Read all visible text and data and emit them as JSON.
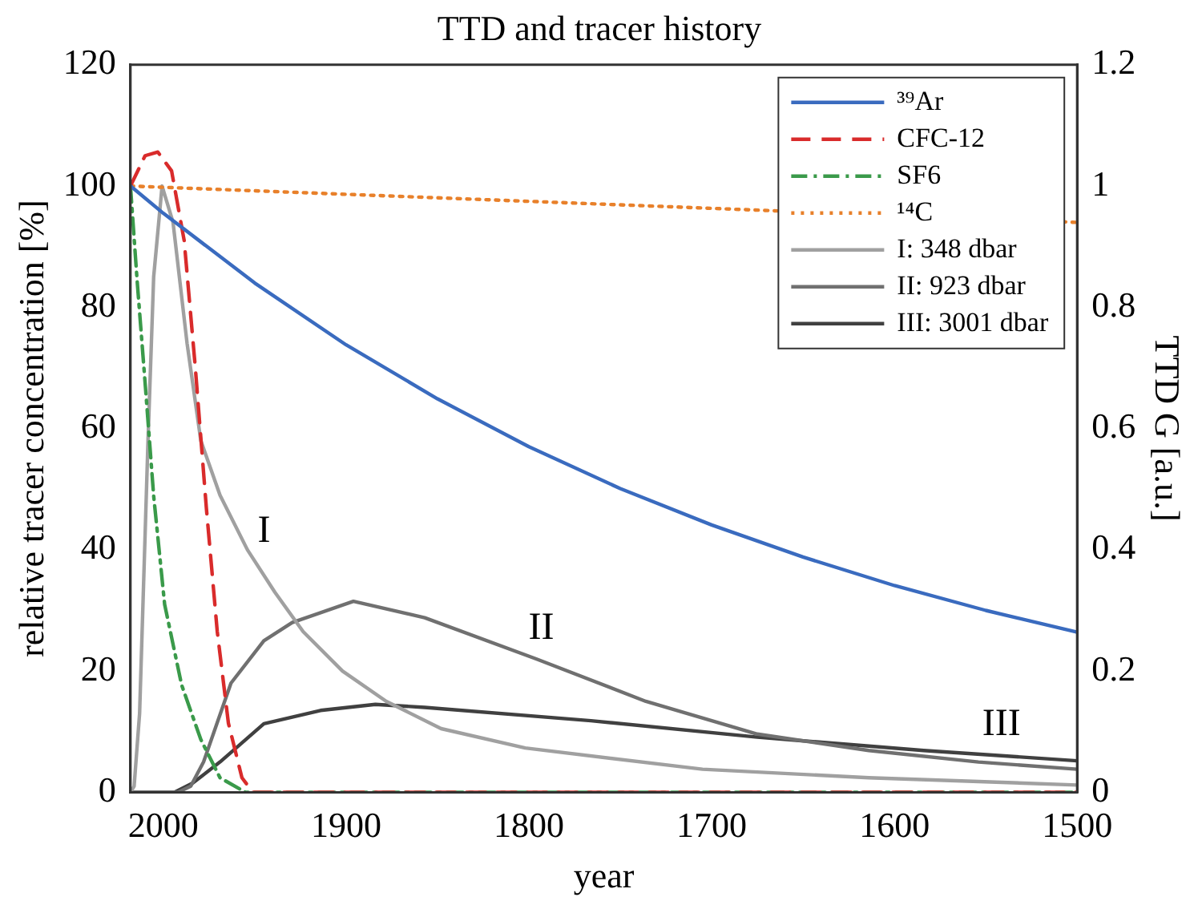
{
  "chart_data": {
    "type": "line",
    "title": "TTD and tracer history",
    "xlabel": "year",
    "ylabel": "relative tracer concentration [%]",
    "y2label": "TTD G [a.u.]",
    "xlim": [
      2018,
      1500
    ],
    "xticks": [
      2000,
      1900,
      1800,
      1700,
      1600,
      1500
    ],
    "ylim": [
      0,
      120
    ],
    "yticks": [
      0,
      20,
      40,
      60,
      80,
      100,
      120
    ],
    "y2lim": [
      0,
      1.2
    ],
    "y2ticks": [
      0,
      0.2,
      0.4,
      0.6,
      0.8,
      1,
      1.2
    ],
    "grid": false,
    "legend": "top right",
    "marker": "none",
    "annotations": [
      "I",
      "II",
      "III"
    ],
    "series": [
      {
        "name": "³⁹Ar",
        "color": "#3a6bbf",
        "line_style": "solid",
        "x": [
          2018,
          2000,
          1950,
          1900,
          1850,
          1800,
          1750,
          1700,
          1650,
          1600,
          1550,
          1500
        ],
        "values": [
          100,
          95.5,
          84,
          73.8,
          64.9,
          57,
          50.1,
          44.1,
          38.8,
          34.1,
          30,
          26.4
        ]
      },
      {
        "name": "CFC-12",
        "color": "#d92b2b",
        "line_style": "dashed",
        "x": [
          2018,
          2010,
          2003,
          1995.5,
          1988.6,
          1982.5,
          1976.5,
          1970.5,
          1964.4,
          1957,
          1951,
          1500
        ],
        "values": [
          100,
          105,
          105.6,
          102.5,
          91,
          70,
          47,
          26.5,
          11.4,
          2.4,
          0,
          0
        ]
      },
      {
        "name": "SF6",
        "color": "#3a9a4a",
        "line_style": "dashdot",
        "x": [
          2018,
          2014.4,
          2009.8,
          2005.3,
          1999.3,
          1990,
          1979.5,
          1969,
          1955,
          1500
        ],
        "values": [
          100,
          84.6,
          66.8,
          48.9,
          31,
          17.7,
          8.7,
          2.4,
          0,
          0
        ]
      },
      {
        "name": "¹⁴C",
        "color": "#e8802a",
        "line_style": "dotted",
        "x": [
          2018,
          1500
        ],
        "values": [
          100,
          94
        ]
      },
      {
        "name": "I: 348 dbar",
        "color": "#a0a0a0",
        "line_style": "solid",
        "axis": "y2",
        "x": [
          2018,
          2016,
          2013,
          2008.4,
          2005.3,
          2000.7,
          1994.7,
          1987,
          1979.5,
          1969,
          1954,
          1939,
          1923.5,
          1902,
          1878,
          1848,
          1802,
          1705,
          1614,
          1500
        ],
        "values": [
          0,
          0.01,
          0.13,
          0.58,
          0.85,
          1,
          0.94,
          0.74,
          0.58,
          0.49,
          0.4,
          0.33,
          0.265,
          0.2,
          0.15,
          0.105,
          0.073,
          0.038,
          0.024,
          0.012
        ]
      },
      {
        "name": "II: 923 dbar",
        "color": "#707070",
        "line_style": "solid",
        "axis": "y2",
        "x": [
          2018,
          1992,
          1985,
          1978,
          1963,
          1945,
          1929.5,
          1896,
          1857,
          1796,
          1736,
          1675,
          1614,
          1554,
          1500
        ],
        "values": [
          0,
          0,
          0.01,
          0.05,
          0.18,
          0.25,
          0.28,
          0.315,
          0.288,
          0.22,
          0.15,
          0.096,
          0.069,
          0.05,
          0.038
        ]
      },
      {
        "name": "III: 3001 dbar",
        "color": "#404040",
        "line_style": "solid",
        "axis": "y2",
        "x": [
          2018,
          1994,
          1984,
          1969,
          1945,
          1914,
          1884,
          1857,
          1766,
          1675,
          1584,
          1500
        ],
        "values": [
          0,
          0,
          0.015,
          0.05,
          0.113,
          0.135,
          0.145,
          0.14,
          0.118,
          0.091,
          0.069,
          0.052
        ]
      }
    ]
  }
}
